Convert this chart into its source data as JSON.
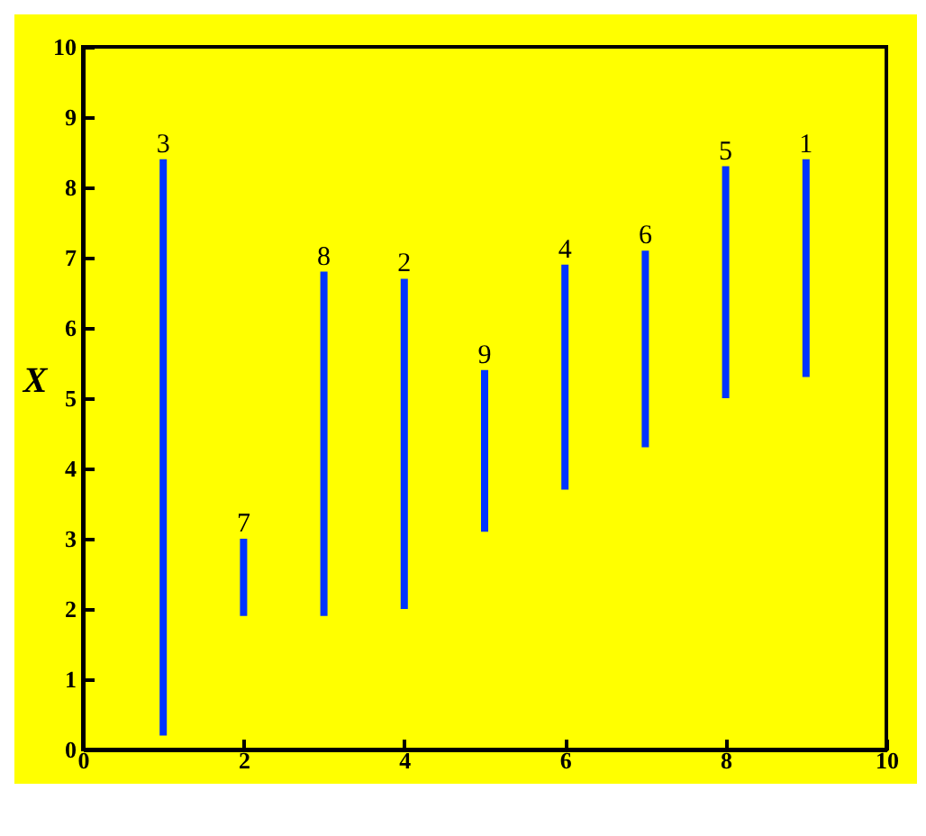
{
  "chart_data": {
    "type": "bar",
    "ylabel": "X",
    "x": [
      1,
      2,
      3,
      4,
      5,
      6,
      7,
      8,
      9
    ],
    "base": [
      0.2,
      1.9,
      1.9,
      2.0,
      3.1,
      3.7,
      4.3,
      5.0,
      5.3
    ],
    "values": [
      8.2,
      1.1,
      4.9,
      4.7,
      2.3,
      3.2,
      2.8,
      3.3,
      3.1
    ],
    "color": "#0033ff",
    "xlim": [
      0,
      10
    ],
    "xticks": [
      0,
      2,
      4,
      6,
      8,
      10
    ],
    "ylim": [
      0,
      10
    ],
    "yticks": [
      0,
      1,
      2,
      3,
      4,
      5,
      6,
      7,
      8,
      9,
      10
    ],
    "grid": false,
    "annotations": [
      {
        "text": "3",
        "x": 1,
        "y": 8.4
      },
      {
        "text": "7",
        "x": 2,
        "y": 3.0
      },
      {
        "text": "8",
        "x": 3,
        "y": 6.8
      },
      {
        "text": "2",
        "x": 4,
        "y": 6.7
      },
      {
        "text": "9",
        "x": 5,
        "y": 5.4
      },
      {
        "text": "4",
        "x": 6,
        "y": 6.9
      },
      {
        "text": "6",
        "x": 7,
        "y": 7.1
      },
      {
        "text": "5",
        "x": 8,
        "y": 8.3
      },
      {
        "text": "1",
        "x": 9,
        "y": 8.4
      }
    ]
  }
}
